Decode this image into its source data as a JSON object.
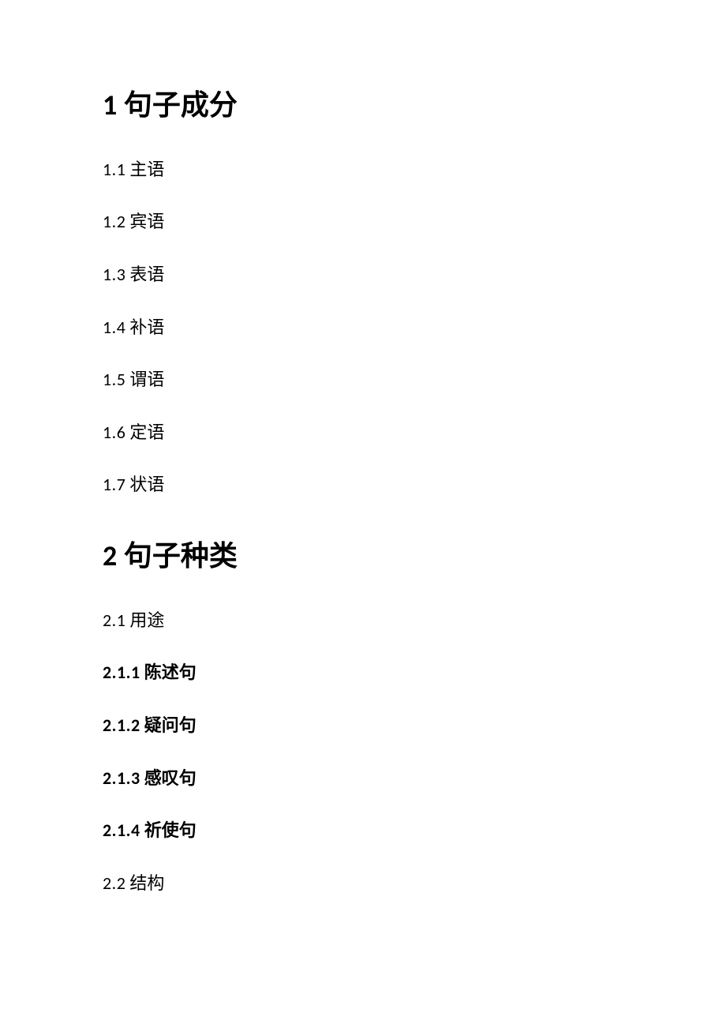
{
  "document": {
    "background_color": "#ffffff",
    "text_color": "#000000",
    "sections": [
      {
        "number": "1",
        "title": "句子成分",
        "level": 1,
        "items": [
          {
            "number": "1.1",
            "title": "主语",
            "level": 2
          },
          {
            "number": "1.2",
            "title": "宾语",
            "level": 2
          },
          {
            "number": "1.3",
            "title": "表语",
            "level": 2
          },
          {
            "number": "1.4",
            "title": "补语",
            "level": 2
          },
          {
            "number": "1.5",
            "title": "谓语",
            "level": 2
          },
          {
            "number": "1.6",
            "title": "定语",
            "level": 2
          },
          {
            "number": "1.7",
            "title": "状语",
            "level": 2
          }
        ]
      },
      {
        "number": "2",
        "title": "句子种类",
        "level": 1,
        "items": [
          {
            "number": "2.1",
            "title": "用途",
            "level": 2
          },
          {
            "number": "2.1.1",
            "title": "陈述句",
            "level": 3
          },
          {
            "number": "2.1.2",
            "title": "疑问句",
            "level": 3
          },
          {
            "number": "2.1.3",
            "title": "感叹句",
            "level": 3
          },
          {
            "number": "2.1.4",
            "title": "祈使句",
            "level": 3
          },
          {
            "number": "2.2",
            "title": "结构",
            "level": 2
          }
        ]
      }
    ]
  }
}
